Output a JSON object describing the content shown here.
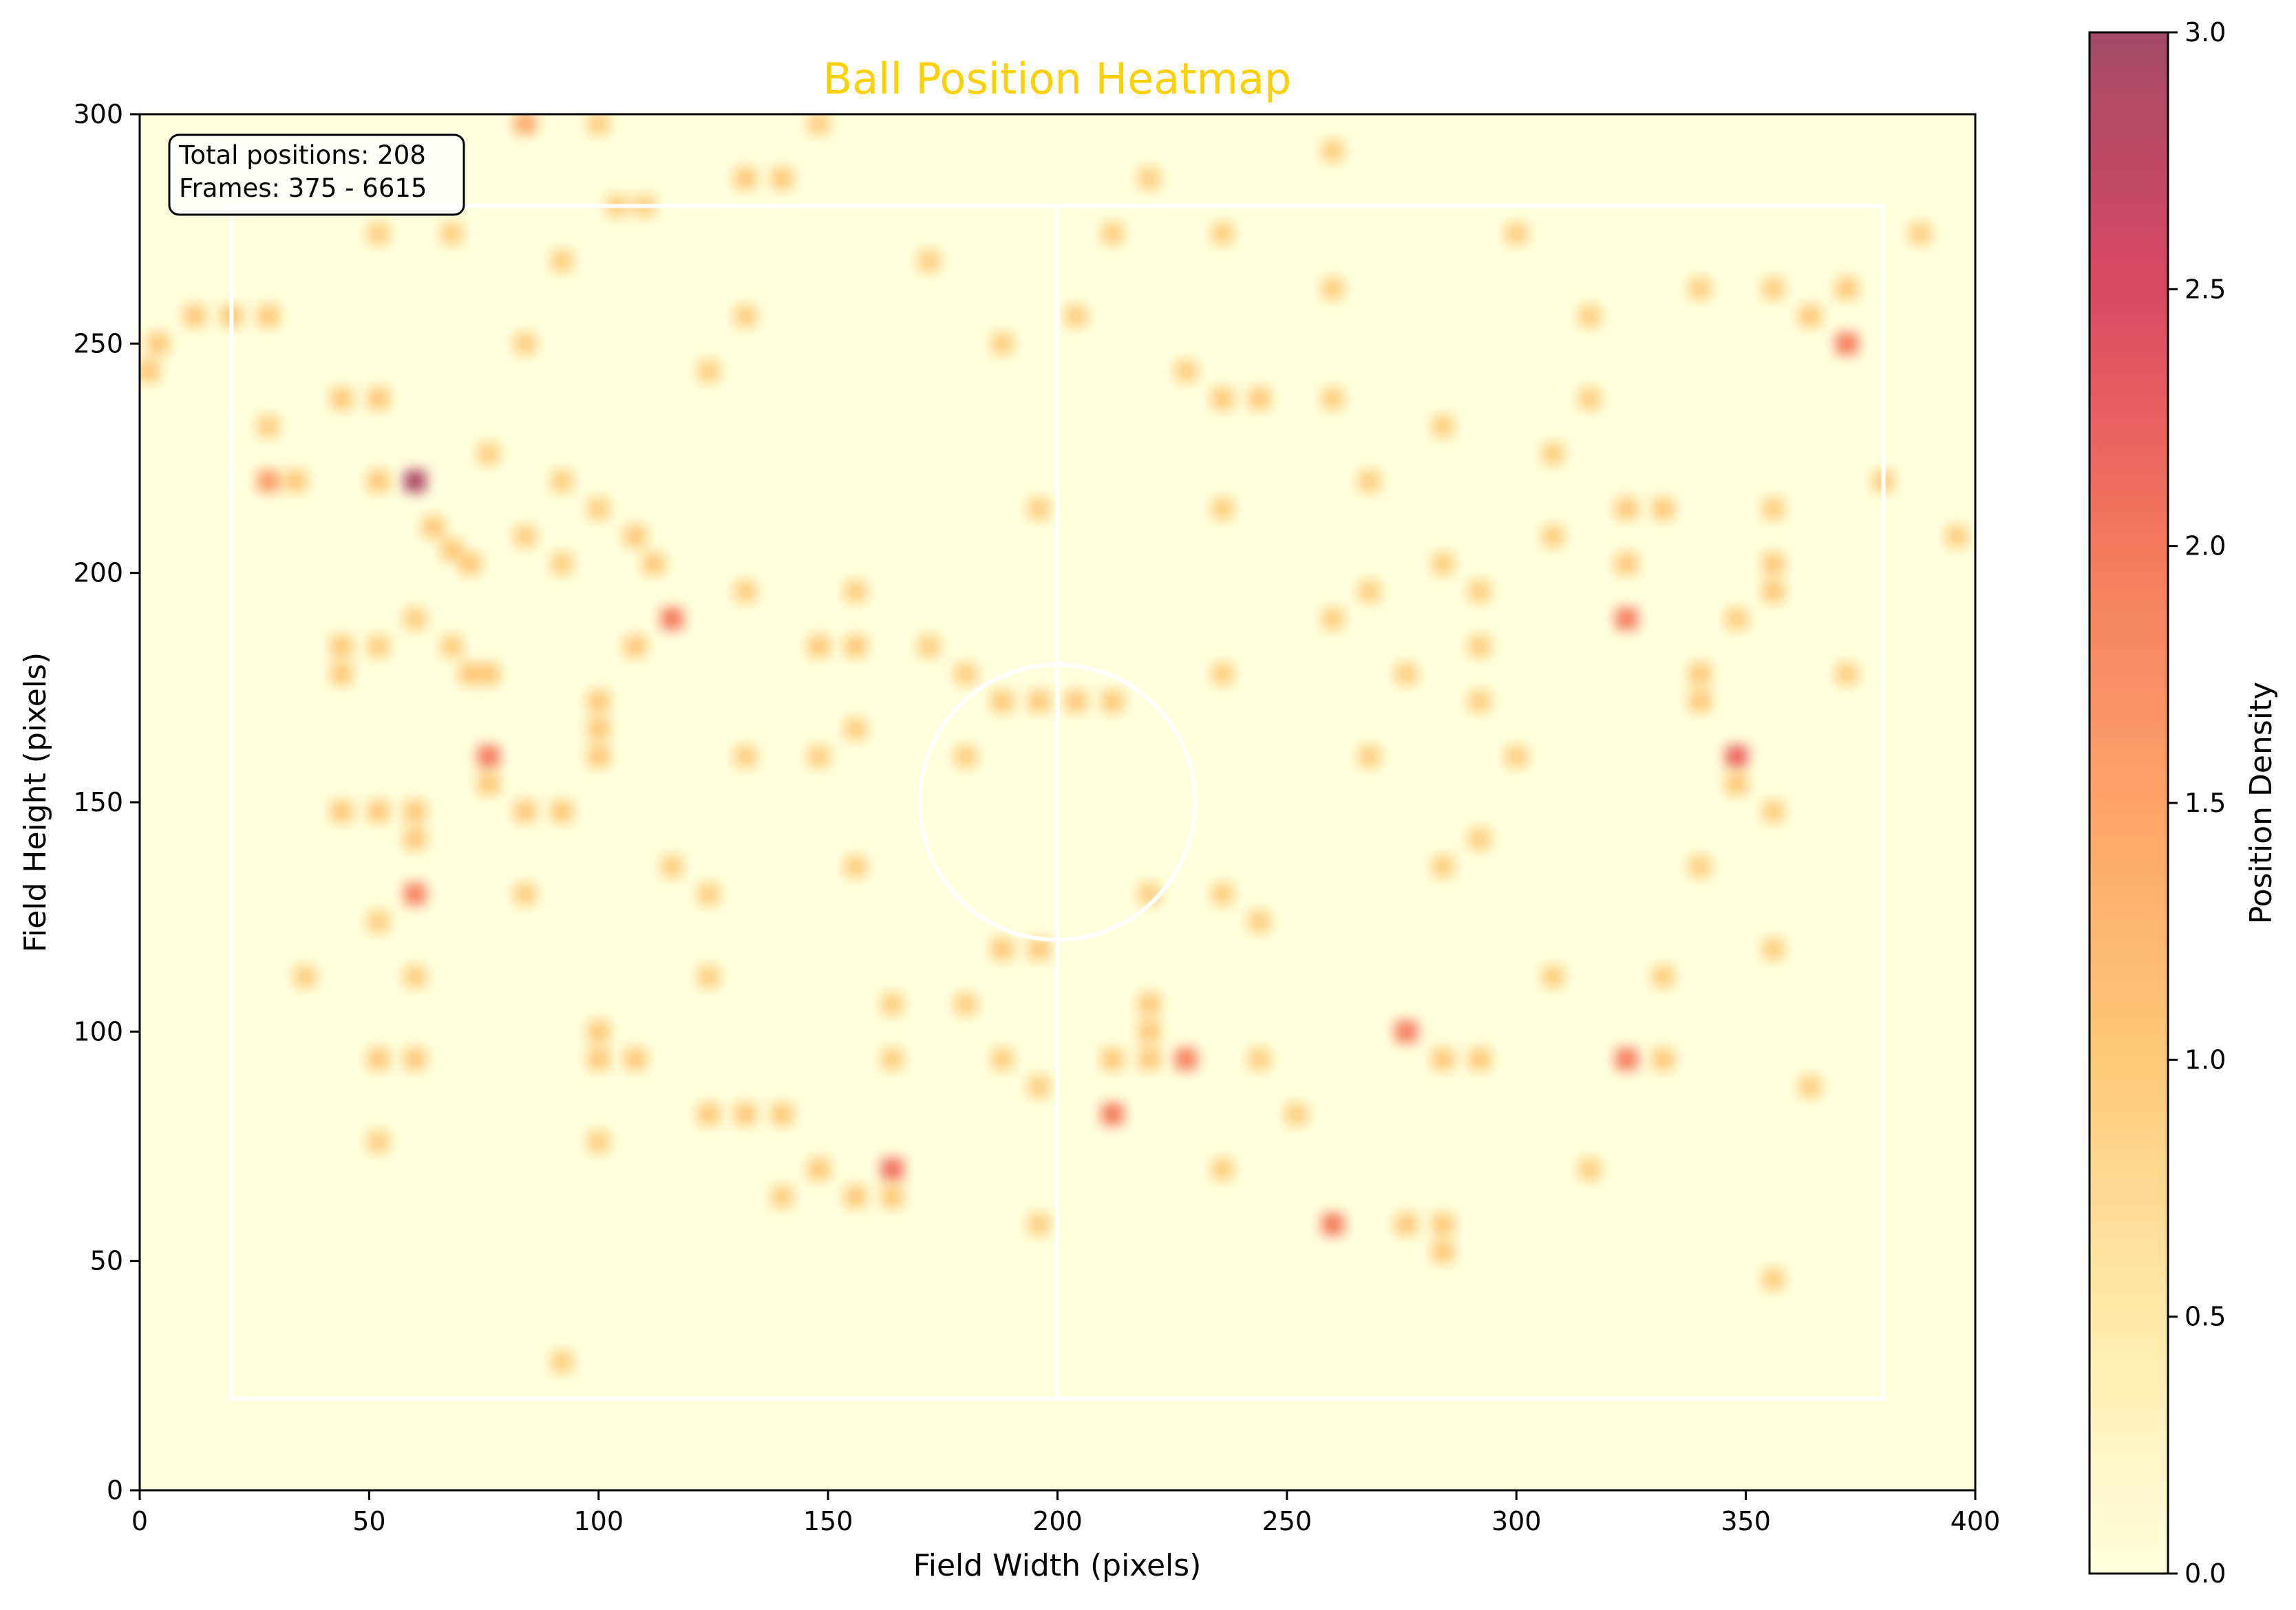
{
  "chart_data": {
    "type": "heatmap",
    "title": "Ball Position Heatmap",
    "xlabel": "Field Width (pixels)",
    "ylabel": "Field Height (pixels)",
    "xlim": [
      0,
      400
    ],
    "ylim": [
      0,
      300
    ],
    "x_ticks": [
      "0",
      "50",
      "100",
      "150",
      "200",
      "250",
      "300",
      "350",
      "400"
    ],
    "y_ticks": [
      "0",
      "50",
      "100",
      "150",
      "200",
      "250",
      "300"
    ],
    "colorbar": {
      "label": "Position Density",
      "range": [
        0,
        3
      ],
      "ticks": [
        "0.0",
        "0.5",
        "1.0",
        "1.5",
        "2.0",
        "2.5",
        "3.0"
      ]
    },
    "info_box": {
      "line1": "Total positions: 208",
      "line2": "Frames: 375 - 6615"
    },
    "colors": {
      "background": "#FFFFDD",
      "field_lines": "#FFFFFF",
      "title": "#FFD000",
      "colormap": [
        "#FFFFDD",
        "#FFE9A8",
        "#FEC97A",
        "#FDA468",
        "#F47A5E",
        "#D94862",
        "#A24A68"
      ]
    },
    "field": {
      "boundary": {
        "x0": 20,
        "x1": 380,
        "y0": 20,
        "y1": 280
      },
      "center_line_x": 200,
      "center_circle": {
        "cx": 200,
        "cy": 150,
        "r": 30
      }
    },
    "points": [
      [
        84,
        298,
        1.4
      ],
      [
        100,
        298,
        0.9
      ],
      [
        148,
        298,
        0.9
      ],
      [
        52,
        274,
        0.9
      ],
      [
        68,
        274,
        0.9
      ],
      [
        92,
        268,
        0.9
      ],
      [
        104,
        280,
        0.9
      ],
      [
        110,
        280,
        0.9
      ],
      [
        132,
        286,
        1.0
      ],
      [
        140,
        286,
        1.0
      ],
      [
        172,
        268,
        0.9
      ],
      [
        12,
        256,
        1.0
      ],
      [
        20,
        256,
        1.0
      ],
      [
        28,
        256,
        1.0
      ],
      [
        2,
        244,
        1.0
      ],
      [
        4,
        250,
        1.0
      ],
      [
        84,
        250,
        0.9
      ],
      [
        44,
        238,
        1.0
      ],
      [
        52,
        238,
        1.0
      ],
      [
        28,
        232,
        0.9
      ],
      [
        76,
        226,
        0.9
      ],
      [
        132,
        256,
        0.9
      ],
      [
        124,
        244,
        0.9
      ],
      [
        28,
        220,
        1.6
      ],
      [
        34,
        220,
        1.0
      ],
      [
        52,
        220,
        1.0
      ],
      [
        60,
        220,
        2.9
      ],
      [
        64,
        210,
        1.0
      ],
      [
        68,
        205,
        1.0
      ],
      [
        72,
        202,
        1.0
      ],
      [
        84,
        208,
        0.9
      ],
      [
        92,
        220,
        0.9
      ],
      [
        100,
        214,
        0.9
      ],
      [
        92,
        202,
        0.9
      ],
      [
        108,
        208,
        1.0
      ],
      [
        112,
        202,
        1.0
      ],
      [
        60,
        190,
        0.9
      ],
      [
        44,
        184,
        1.0
      ],
      [
        44,
        178,
        1.0
      ],
      [
        52,
        184,
        0.9
      ],
      [
        68,
        184,
        0.9
      ],
      [
        72,
        178,
        1.0
      ],
      [
        76,
        178,
        1.0
      ],
      [
        116,
        190,
        2.0
      ],
      [
        108,
        184,
        1.0
      ],
      [
        132,
        196,
        0.9
      ],
      [
        156,
        196,
        0.9
      ],
      [
        148,
        184,
        1.0
      ],
      [
        156,
        184,
        1.0
      ],
      [
        172,
        184,
        0.9
      ],
      [
        180,
        178,
        0.9
      ],
      [
        100,
        172,
        1.0
      ],
      [
        100,
        166,
        1.0
      ],
      [
        100,
        160,
        1.0
      ],
      [
        76,
        160,
        2.0
      ],
      [
        76,
        154,
        1.0
      ],
      [
        132,
        160,
        0.9
      ],
      [
        148,
        160,
        0.9
      ],
      [
        156,
        166,
        0.9
      ],
      [
        180,
        160,
        0.9
      ],
      [
        188,
        172,
        1.0
      ],
      [
        196,
        172,
        1.0
      ],
      [
        204,
        172,
        1.0
      ],
      [
        212,
        172,
        1.0
      ],
      [
        44,
        148,
        1.0
      ],
      [
        52,
        148,
        1.0
      ],
      [
        60,
        148,
        1.0
      ],
      [
        60,
        142,
        1.0
      ],
      [
        84,
        148,
        1.0
      ],
      [
        92,
        148,
        1.0
      ],
      [
        60,
        130,
        1.9
      ],
      [
        52,
        124,
        0.9
      ],
      [
        84,
        130,
        0.9
      ],
      [
        116,
        136,
        0.9
      ],
      [
        124,
        130,
        0.9
      ],
      [
        156,
        136,
        0.9
      ],
      [
        36,
        112,
        0.9
      ],
      [
        60,
        112,
        0.9
      ],
      [
        124,
        112,
        0.9
      ],
      [
        188,
        118,
        1.0
      ],
      [
        196,
        118,
        1.0
      ],
      [
        52,
        94,
        1.0
      ],
      [
        60,
        94,
        1.0
      ],
      [
        100,
        100,
        1.0
      ],
      [
        100,
        94,
        1.0
      ],
      [
        108,
        94,
        1.0
      ],
      [
        164,
        106,
        0.9
      ],
      [
        180,
        106,
        0.9
      ],
      [
        164,
        94,
        0.9
      ],
      [
        188,
        94,
        0.9
      ],
      [
        196,
        88,
        0.9
      ],
      [
        52,
        76,
        0.9
      ],
      [
        100,
        76,
        0.9
      ],
      [
        124,
        82,
        1.0
      ],
      [
        132,
        82,
        1.0
      ],
      [
        140,
        82,
        1.0
      ],
      [
        148,
        70,
        1.0
      ],
      [
        156,
        64,
        1.0
      ],
      [
        164,
        70,
        2.1
      ],
      [
        164,
        64,
        1.0
      ],
      [
        140,
        64,
        0.9
      ],
      [
        196,
        58,
        0.9
      ],
      [
        92,
        28,
        0.9
      ],
      [
        260,
        292,
        0.9
      ],
      [
        220,
        286,
        0.9
      ],
      [
        212,
        274,
        0.9
      ],
      [
        236,
        274,
        0.9
      ],
      [
        204,
        256,
        0.9
      ],
      [
        260,
        262,
        0.9
      ],
      [
        300,
        274,
        0.9
      ],
      [
        188,
        250,
        0.9
      ],
      [
        228,
        244,
        0.9
      ],
      [
        236,
        238,
        1.0
      ],
      [
        244,
        238,
        1.0
      ],
      [
        260,
        238,
        0.9
      ],
      [
        284,
        232,
        0.9
      ],
      [
        196,
        214,
        0.9
      ],
      [
        236,
        214,
        0.9
      ],
      [
        268,
        220,
        0.9
      ],
      [
        268,
        196,
        0.9
      ],
      [
        260,
        190,
        0.9
      ],
      [
        284,
        202,
        0.9
      ],
      [
        292,
        196,
        0.9
      ],
      [
        292,
        184,
        0.9
      ],
      [
        292,
        172,
        0.9
      ],
      [
        236,
        178,
        0.9
      ],
      [
        276,
        178,
        0.9
      ],
      [
        268,
        160,
        0.9
      ],
      [
        300,
        160,
        0.9
      ],
      [
        284,
        136,
        0.9
      ],
      [
        292,
        142,
        0.9
      ],
      [
        220,
        130,
        0.9
      ],
      [
        236,
        130,
        0.9
      ],
      [
        244,
        124,
        0.9
      ],
      [
        220,
        106,
        1.0
      ],
      [
        220,
        100,
        1.0
      ],
      [
        220,
        94,
        1.0
      ],
      [
        212,
        94,
        1.0
      ],
      [
        228,
        94,
        1.9
      ],
      [
        244,
        94,
        0.9
      ],
      [
        212,
        82,
        2.0
      ],
      [
        252,
        82,
        0.9
      ],
      [
        236,
        70,
        0.9
      ],
      [
        260,
        58,
        2.0
      ],
      [
        276,
        58,
        1.0
      ],
      [
        284,
        58,
        1.0
      ],
      [
        284,
        52,
        1.0
      ],
      [
        276,
        100,
        2.0
      ],
      [
        284,
        94,
        1.0
      ],
      [
        292,
        94,
        1.0
      ],
      [
        308,
        226,
        0.9
      ],
      [
        316,
        238,
        0.9
      ],
      [
        316,
        256,
        0.9
      ],
      [
        324,
        214,
        1.0
      ],
      [
        332,
        214,
        1.0
      ],
      [
        308,
        208,
        0.9
      ],
      [
        324,
        202,
        1.0
      ],
      [
        324,
        190,
        2.0
      ],
      [
        340,
        178,
        1.0
      ],
      [
        340,
        172,
        1.0
      ],
      [
        348,
        160,
        2.2
      ],
      [
        348,
        154,
        1.0
      ],
      [
        356,
        148,
        0.9
      ],
      [
        340,
        262,
        0.9
      ],
      [
        356,
        262,
        0.9
      ],
      [
        364,
        256,
        1.0
      ],
      [
        372,
        262,
        1.0
      ],
      [
        372,
        250,
        2.0
      ],
      [
        380,
        220,
        0.9
      ],
      [
        396,
        208,
        0.9
      ],
      [
        388,
        274,
        0.9
      ],
      [
        356,
        214,
        0.9
      ],
      [
        356,
        202,
        1.0
      ],
      [
        356,
        196,
        1.0
      ],
      [
        348,
        190,
        0.9
      ],
      [
        372,
        178,
        0.9
      ],
      [
        340,
        136,
        0.9
      ],
      [
        356,
        118,
        0.9
      ],
      [
        308,
        112,
        0.9
      ],
      [
        332,
        112,
        0.9
      ],
      [
        324,
        94,
        2.0
      ],
      [
        332,
        94,
        1.0
      ],
      [
        364,
        88,
        0.9
      ],
      [
        316,
        70,
        0.9
      ],
      [
        356,
        46,
        0.9
      ]
    ]
  }
}
